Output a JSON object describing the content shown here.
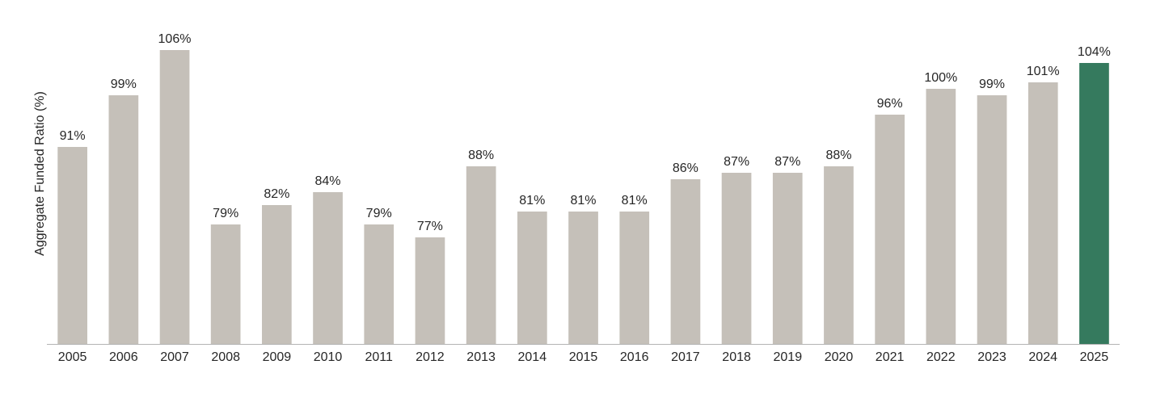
{
  "chart_data": {
    "type": "bar",
    "ylabel": "Aggregate Funded Ratio (%)",
    "categories": [
      "2005",
      "2006",
      "2007",
      "2008",
      "2009",
      "2010",
      "2011",
      "2012",
      "2013",
      "2014",
      "2015",
      "2016",
      "2017",
      "2018",
      "2019",
      "2020",
      "2021",
      "2022",
      "2023",
      "2024",
      "2025"
    ],
    "values": [
      91,
      99,
      106,
      79,
      82,
      84,
      79,
      77,
      88,
      81,
      81,
      81,
      86,
      87,
      87,
      88,
      96,
      100,
      99,
      101,
      104
    ],
    "value_suffix": "%",
    "ylim": [
      60.5,
      110.5
    ],
    "grid": false,
    "legend": "none",
    "bar_color": "#c5c0b9",
    "highlight_color": "#357a5e",
    "highlight_category": "2025"
  }
}
